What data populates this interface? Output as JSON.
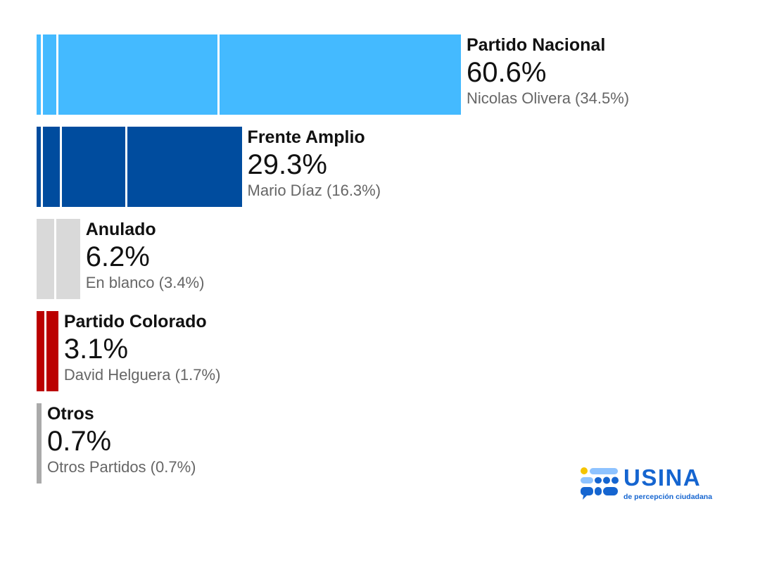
{
  "chart_data": {
    "type": "bar",
    "orientation": "horizontal",
    "unit": "%",
    "title": "",
    "categories": [
      "Partido Nacional",
      "Frente Amplio",
      "Anulado",
      "Partido Colorado",
      "Otros"
    ],
    "values": [
      60.6,
      29.3,
      6.2,
      3.1,
      0.7
    ],
    "value_labels": [
      "60.6%",
      "29.3%",
      "6.2%",
      "3.1%",
      "0.7%"
    ],
    "colors": [
      "#44baff",
      "#004c9e",
      "#d9d9d9",
      "#bb0000",
      "#aaaaaa"
    ],
    "sub_labels": [
      "Nicolas Olivera (34.5%)",
      "Mario Díaz (16.3%)",
      "En blanco (3.4%)",
      "David Helguera (1.7%)",
      "Otros Partidos (0.7%)"
    ],
    "segments": [
      [
        {
          "value": 0.9
        },
        {
          "value": 2.2
        },
        {
          "value": 23.0
        },
        {
          "value": 34.5
        }
      ],
      [
        {
          "value": 0.9
        },
        {
          "value": 2.7
        },
        {
          "value": 9.4
        },
        {
          "value": 16.3
        }
      ],
      [
        {
          "value": 2.8
        },
        {
          "value": 3.4
        }
      ],
      [
        {
          "value": 1.4
        },
        {
          "value": 1.7
        }
      ],
      [
        {
          "value": 0.7
        }
      ]
    ]
  },
  "logo": {
    "name": "USINA",
    "tagline": "de percepción ciudadana",
    "color": "#1565d0"
  }
}
